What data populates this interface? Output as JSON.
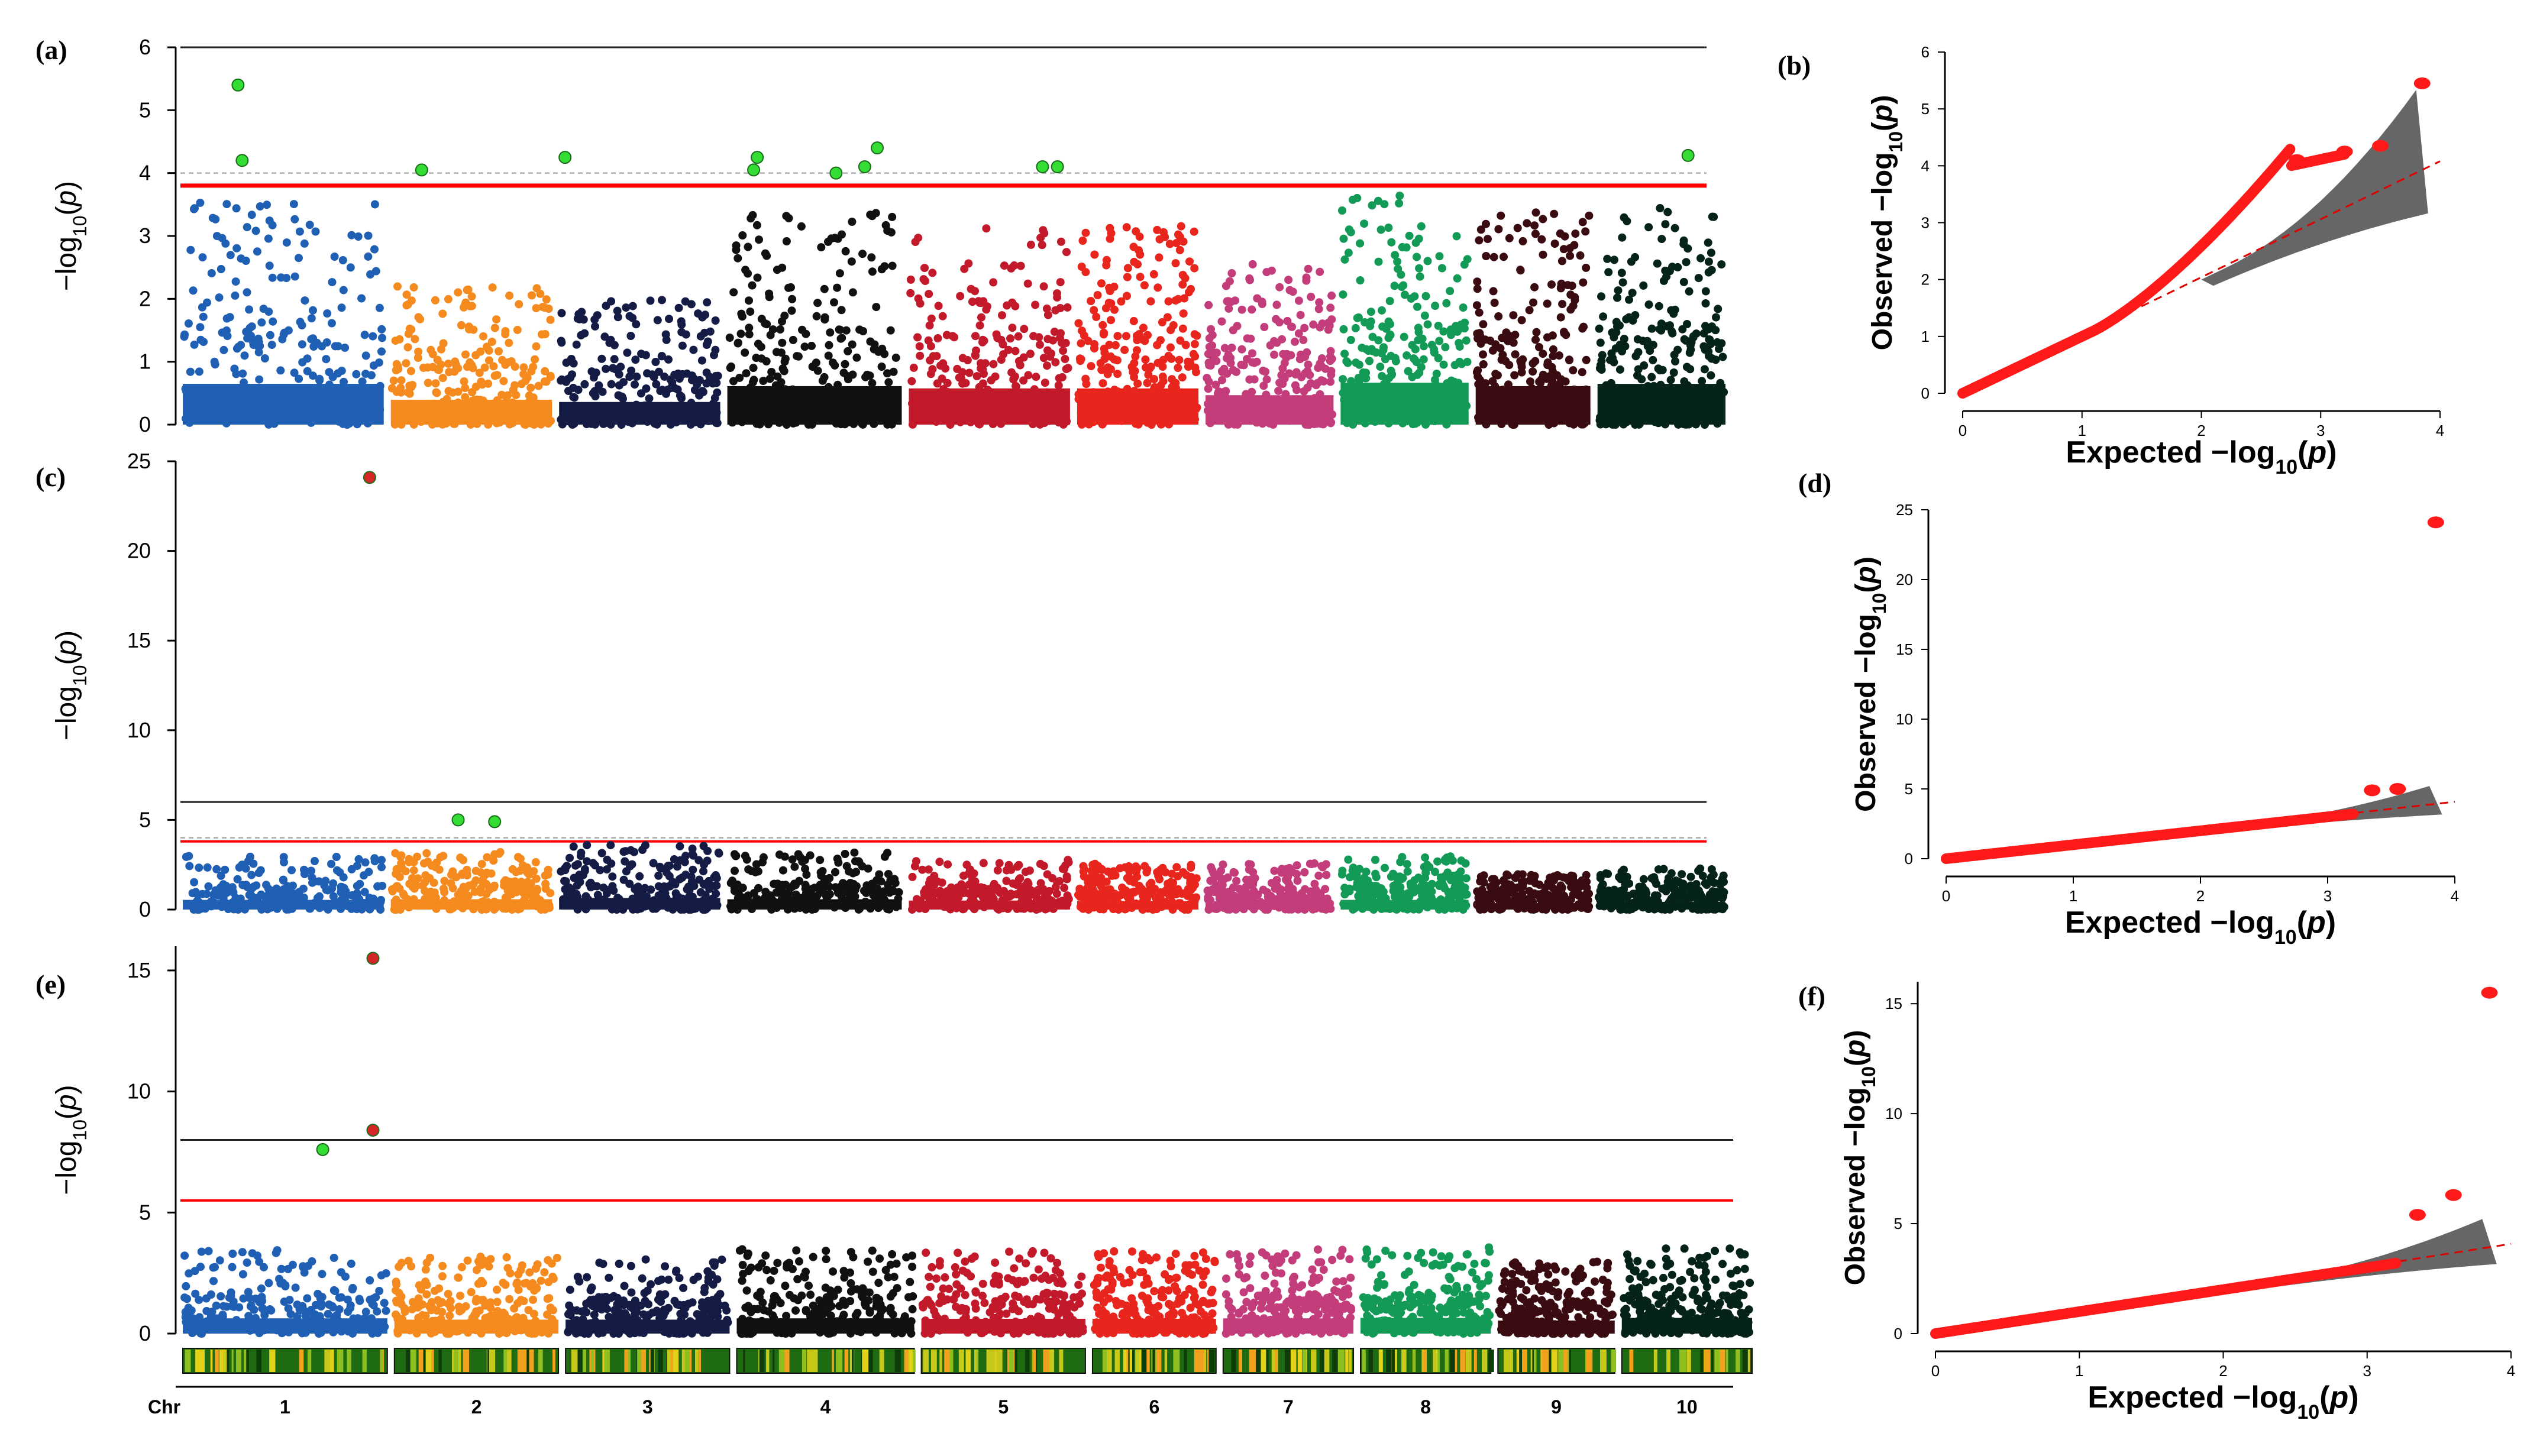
{
  "chart_data": [
    {
      "panel": "(a)",
      "type": "scatter",
      "subtype": "manhattan",
      "ylabel": "-log10(p)",
      "ylim": [
        0,
        6
      ],
      "yticks": [
        "0",
        "1",
        "2",
        "3",
        "4",
        "5",
        "6"
      ],
      "thresholds": {
        "bonferroni": 6,
        "suggestive_dashed": 4.0,
        "significance_red": 3.8
      },
      "chromosomes": [
        "1",
        "2",
        "3",
        "4",
        "5",
        "6",
        "7",
        "8",
        "9",
        "10"
      ],
      "chr_colors": [
        "#1f5fb4",
        "#f58a1f",
        "#141c45",
        "#111111",
        "#c21a2b",
        "#e8261e",
        "#c43d7b",
        "#139a57",
        "#3a0c12",
        "#06231a"
      ],
      "chr_max": [
        3.6,
        2.2,
        2.0,
        3.4,
        3.2,
        3.2,
        2.6,
        3.7,
        3.4,
        3.6
      ],
      "significant": [
        {
          "chr": "1",
          "pos": 0.28,
          "value": 5.4
        },
        {
          "chr": "1",
          "pos": 0.3,
          "value": 4.2
        },
        {
          "chr": "2",
          "pos": 0.2,
          "value": 4.05
        },
        {
          "chr": "3",
          "pos": 0.05,
          "value": 4.25
        },
        {
          "chr": "4",
          "pos": 0.18,
          "value": 4.25
        },
        {
          "chr": "4",
          "pos": 0.16,
          "value": 4.05
        },
        {
          "chr": "4",
          "pos": 0.62,
          "value": 4.0
        },
        {
          "chr": "4",
          "pos": 0.78,
          "value": 4.1
        },
        {
          "chr": "4",
          "pos": 0.85,
          "value": 4.4
        },
        {
          "chr": "5",
          "pos": 0.82,
          "value": 4.1
        },
        {
          "chr": "5",
          "pos": 0.91,
          "value": 4.1
        },
        {
          "chr": "10",
          "pos": 0.7,
          "value": 4.28
        }
      ]
    },
    {
      "panel": "(b)",
      "type": "scatter",
      "subtype": "qq",
      "xlabel": "Expected  −log10(p)",
      "ylabel": "Observed  −log10(p)",
      "xlim": [
        0,
        4
      ],
      "ylim": [
        0,
        6
      ],
      "xticks": [
        "0",
        "1",
        "2",
        "3",
        "4"
      ],
      "yticks": [
        "0",
        "1",
        "2",
        "3",
        "4",
        "5",
        "6"
      ],
      "max_observed": 5.45,
      "tail_points": [
        [
          2.8,
          4.1
        ],
        [
          3.2,
          4.25
        ],
        [
          3.5,
          4.35
        ],
        [
          3.85,
          5.45
        ]
      ]
    },
    {
      "panel": "(c)",
      "type": "scatter",
      "subtype": "manhattan",
      "ylabel": "-log10(p)",
      "ylim": [
        0,
        25
      ],
      "yticks": [
        "0",
        "5",
        "10",
        "15",
        "20",
        "25"
      ],
      "thresholds": {
        "bonferroni": 6,
        "suggestive_dashed": 4.0,
        "significance_red": 3.8
      },
      "chromosomes": [
        "1",
        "2",
        "3",
        "4",
        "5",
        "6",
        "7",
        "8",
        "9",
        "10"
      ],
      "chr_colors": [
        "#1f5fb4",
        "#f58a1f",
        "#141c45",
        "#111111",
        "#c21a2b",
        "#e8261e",
        "#c43d7b",
        "#139a57",
        "#3a0c12",
        "#06231a"
      ],
      "chr_max": [
        3.0,
        3.2,
        3.6,
        3.2,
        2.8,
        2.6,
        2.6,
        3.0,
        2.0,
        2.4
      ],
      "significant": [
        {
          "chr": "1",
          "pos": 0.92,
          "value": 24.1,
          "color": "#d62728"
        },
        {
          "chr": "2",
          "pos": 0.42,
          "value": 5.0
        },
        {
          "chr": "2",
          "pos": 0.64,
          "value": 4.9
        }
      ]
    },
    {
      "panel": "(d)",
      "type": "scatter",
      "subtype": "qq",
      "xlabel": "Expected  −log10(p)",
      "ylabel": "Observed  −log10(p)",
      "xlim": [
        0,
        4
      ],
      "ylim": [
        0,
        25
      ],
      "xticks": [
        "0",
        "1",
        "2",
        "3",
        "4"
      ],
      "yticks": [
        "0",
        "5",
        "10",
        "15",
        "20",
        "25"
      ],
      "max_observed": 24.1,
      "tail_points": [
        [
          3.35,
          4.9
        ],
        [
          3.55,
          5.0
        ],
        [
          3.85,
          24.1
        ]
      ]
    },
    {
      "panel": "(e)",
      "type": "scatter",
      "subtype": "manhattan",
      "ylabel": "-log10(p)",
      "ylim": [
        0,
        16
      ],
      "yticks": [
        "0",
        "5",
        "10",
        "15"
      ],
      "thresholds": {
        "bonferroni": 8,
        "significance_red": 5.5
      },
      "chromosomes": [
        "1",
        "2",
        "3",
        "4",
        "5",
        "6",
        "7",
        "8",
        "9",
        "10"
      ],
      "chr_colors": [
        "#1f5fb4",
        "#f58a1f",
        "#141c45",
        "#111111",
        "#c21a2b",
        "#e8261e",
        "#c43d7b",
        "#139a57",
        "#3a0c12",
        "#06231a"
      ],
      "chr_max": [
        3.5,
        3.2,
        3.2,
        3.5,
        3.4,
        3.4,
        3.5,
        3.6,
        3.0,
        3.6
      ],
      "significant": [
        {
          "chr": "1",
          "pos": 0.92,
          "value": 15.5,
          "color": "#d62728"
        },
        {
          "chr": "1",
          "pos": 0.92,
          "value": 8.4,
          "color": "#d62728"
        },
        {
          "chr": "1",
          "pos": 0.68,
          "value": 7.6
        }
      ]
    },
    {
      "panel": "(f)",
      "type": "scatter",
      "subtype": "qq",
      "xlabel": "Expected  −log10(p)",
      "ylabel": "Observed  −log10(p)",
      "xlim": [
        0,
        4
      ],
      "ylim": [
        0,
        16
      ],
      "xticks": [
        "0",
        "1",
        "2",
        "3",
        "4"
      ],
      "yticks": [
        "0",
        "5",
        "10",
        "15"
      ],
      "max_observed": 15.5,
      "tail_points": [
        [
          3.35,
          5.4
        ],
        [
          3.6,
          6.3
        ],
        [
          3.85,
          15.5
        ]
      ]
    }
  ],
  "chr_axis": {
    "title": "Chr",
    "labels": [
      "1",
      "2",
      "3",
      "4",
      "5",
      "6",
      "7",
      "8",
      "9",
      "10"
    ]
  }
}
